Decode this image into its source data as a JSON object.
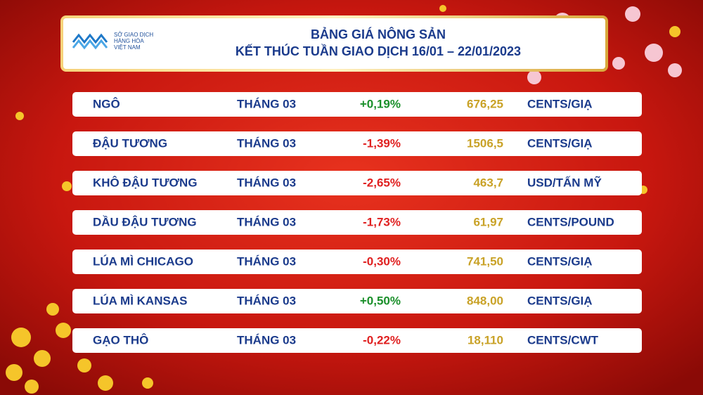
{
  "header": {
    "logo": [
      "SỞ GIAO DỊCH",
      "HÀNG HÓA",
      "VIỆT NAM"
    ],
    "title": "BẢNG GIÁ NÔNG SẢN",
    "subtitle": "KẾT THÚC TUẦN GIAO DỊCH 16/01 – 22/01/2023"
  },
  "table": {
    "rows": [
      [
        "NGÔ",
        "THÁNG 03",
        "+0,19%",
        "676,25",
        "CENTS/GIẠ"
      ],
      [
        "ĐẬU TƯƠNG",
        "THÁNG 03",
        "-1,39%",
        "1506,5",
        "CENTS/GIẠ"
      ],
      [
        "KHÔ ĐẬU TƯƠNG",
        "THÁNG 03",
        "-2,65%",
        "463,7",
        "USD/TẤN MỸ"
      ],
      [
        "DẦU ĐẬU TƯƠNG",
        "THÁNG 03",
        "-1,73%",
        "61,97",
        "CENTS/POUND"
      ],
      [
        "LÚA MÌ CHICAGO",
        "THÁNG 03",
        "-0,30%",
        "741,50",
        "CENTS/GIẠ"
      ],
      [
        "LÚA MÌ KANSAS",
        "THÁNG 03",
        "+0,50%",
        "848,00",
        "CENTS/GIẠ"
      ],
      [
        "GẠO THÔ",
        "THÁNG 03",
        "-0,22%",
        "18,110",
        "CENTS/CWT"
      ]
    ]
  }
}
